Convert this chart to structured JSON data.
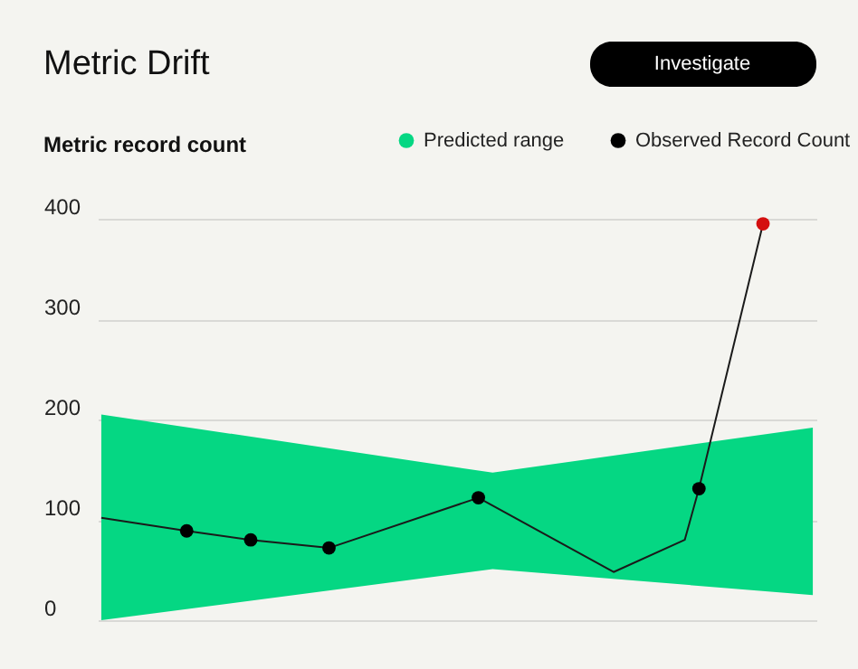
{
  "chart_data": {
    "type": "line",
    "title": "Metric Drift",
    "ylabel": "Metric record count",
    "annotations": [
      "Investigate"
    ],
    "categories": [
      null,
      null,
      null,
      null,
      null,
      null,
      null,
      null,
      null,
      null,
      null,
      null,
      null,
      null,
      null,
      null,
      null,
      null,
      null,
      null,
      null,
      null,
      null,
      null,
      null,
      null,
      null,
      null,
      null,
      null,
      null,
      null,
      null,
      null,
      null,
      null,
      null,
      null,
      null,
      null,
      null,
      null,
      null,
      null,
      null,
      null,
      null,
      null,
      null,
      null,
      null,
      null,
      null,
      null,
      null,
      null,
      null,
      null,
      null,
      null,
      null,
      null,
      null,
      null,
      null,
      null,
      null,
      null,
      null,
      null,
      null,
      null,
      null,
      null,
      null,
      null,
      null,
      null,
      null,
      null,
      null,
      null,
      null,
      null,
      null,
      null,
      null,
      null,
      null,
      null,
      null,
      null,
      null,
      null,
      null,
      null,
      null,
      null,
      null,
      null,
      null
    ],
    "ylim": [
      0,
      400
    ],
    "yticks": [
      0,
      100,
      200,
      300,
      400
    ],
    "tick_labels": "y",
    "grid": "y",
    "legend": "top right",
    "series": [
      {
        "type": "area",
        "name": "Predicted range",
        "color": "#05d783",
        "values": [
          null,
          null,
          null,
          null,
          null,
          null,
          null,
          null,
          null,
          null,
          null,
          null,
          null,
          null,
          null,
          null,
          null,
          null,
          null,
          null,
          null,
          null,
          null,
          null,
          null,
          null,
          null,
          null,
          null,
          null,
          null,
          null,
          null,
          null,
          null,
          null,
          null,
          null,
          null,
          null,
          null,
          null,
          null,
          null,
          null,
          null,
          null,
          null,
          null,
          null,
          null,
          null,
          null,
          null,
          null,
          null,
          null,
          null,
          null,
          null,
          null,
          null,
          null,
          null,
          null,
          null,
          null,
          null,
          null,
          null,
          null,
          null,
          null,
          null,
          null,
          null,
          null,
          null,
          null,
          null,
          null,
          null,
          null,
          null,
          null,
          null,
          null,
          null,
          null,
          null,
          null,
          null,
          null,
          null,
          null,
          null,
          null,
          null,
          null,
          null,
          null
        ],
        "lower": [
          0,
          null,
          null,
          null,
          null,
          null,
          null,
          null,
          null,
          null,
          null,
          null,
          null,
          null,
          null,
          null,
          null,
          null,
          null,
          null,
          null,
          null,
          null,
          null,
          null,
          null,
          null,
          null,
          null,
          null,
          null,
          null,
          null,
          null,
          null,
          null,
          null,
          null,
          null,
          null,
          null,
          null,
          null,
          null,
          null,
          null,
          null,
          null,
          null,
          null,
          null,
          null,
          null,
          null,
          null,
          51,
          null,
          null,
          null,
          null,
          null,
          null,
          null,
          null,
          null,
          null,
          null,
          null,
          null,
          null,
          null,
          null,
          null,
          null,
          null,
          null,
          null,
          null,
          null,
          null,
          null,
          null,
          null,
          null,
          null,
          null,
          null,
          null,
          null,
          null,
          null,
          null,
          null,
          null,
          null,
          null,
          null,
          null,
          null,
          null,
          25
        ],
        "upper": [
          205,
          null,
          null,
          null,
          null,
          null,
          null,
          null,
          null,
          null,
          null,
          null,
          null,
          null,
          null,
          null,
          null,
          null,
          null,
          null,
          null,
          null,
          null,
          null,
          null,
          null,
          null,
          null,
          null,
          null,
          null,
          null,
          null,
          null,
          null,
          null,
          null,
          null,
          null,
          null,
          null,
          null,
          null,
          null,
          null,
          null,
          null,
          null,
          null,
          null,
          null,
          null,
          null,
          null,
          null,
          147,
          null,
          null,
          null,
          null,
          null,
          null,
          null,
          null,
          null,
          null,
          null,
          null,
          null,
          null,
          null,
          null,
          null,
          null,
          null,
          null,
          null,
          null,
          null,
          null,
          null,
          null,
          null,
          null,
          null,
          null,
          null,
          null,
          null,
          null,
          null,
          null,
          null,
          null,
          null,
          null,
          null,
          null,
          null,
          null,
          192
        ]
      },
      {
        "color": "#1a1a1a",
        "marker": "none",
        "values": [
          102,
          null,
          null,
          null,
          null,
          null,
          null,
          null,
          null,
          null,
          null,
          null,
          89,
          null,
          null,
          null,
          null,
          null,
          null,
          null,
          null,
          80,
          null,
          null,
          null,
          null,
          null,
          null,
          null,
          null,
          null,
          null,
          72,
          null,
          null,
          null,
          null,
          null,
          null,
          null,
          null,
          null,
          null,
          null,
          null,
          null,
          null,
          null,
          null,
          null,
          null,
          null,
          null,
          122,
          null,
          null,
          null,
          null,
          null,
          null,
          null,
          null,
          null,
          null,
          null,
          null,
          null,
          null,
          null,
          null,
          null,
          null,
          48,
          null,
          null,
          null,
          null,
          null,
          null,
          null,
          null,
          null,
          80,
          null,
          131,
          null,
          null,
          null,
          null,
          null,
          null,
          null,
          null,
          395,
          null,
          null,
          null,
          null,
          null,
          null,
          null
        ]
      },
      {
        "type": "scatter",
        "name": "Observed Record Count",
        "color": "#000000",
        "marker": "circle",
        "values": [
          null,
          null,
          null,
          null,
          null,
          null,
          null,
          null,
          null,
          null,
          null,
          null,
          89,
          null,
          null,
          null,
          null,
          null,
          null,
          null,
          null,
          80,
          null,
          null,
          null,
          null,
          null,
          null,
          null,
          null,
          null,
          null,
          72,
          null,
          null,
          null,
          null,
          null,
          null,
          null,
          null,
          null,
          null,
          null,
          null,
          null,
          null,
          null,
          null,
          null,
          null,
          null,
          null,
          122,
          null,
          null,
          null,
          null,
          null,
          null,
          null,
          null,
          null,
          null,
          null,
          null,
          null,
          null,
          null,
          null,
          null,
          null,
          null,
          null,
          null,
          null,
          null,
          null,
          null,
          null,
          null,
          null,
          null,
          null,
          131,
          null,
          null,
          null,
          null,
          null,
          null,
          null,
          null,
          395,
          null,
          null,
          null,
          null,
          null,
          null,
          null
        ],
        "colors": [
          null,
          null,
          null,
          null,
          null,
          null,
          null,
          null,
          null,
          null,
          null,
          null,
          "#000000",
          null,
          null,
          null,
          null,
          null,
          null,
          null,
          null,
          "#000000",
          null,
          null,
          null,
          null,
          null,
          null,
          null,
          null,
          null,
          null,
          "#000000",
          null,
          null,
          null,
          null,
          null,
          null,
          null,
          null,
          null,
          null,
          null,
          null,
          null,
          null,
          null,
          null,
          null,
          null,
          null,
          null,
          "#000000",
          null,
          null,
          null,
          null,
          null,
          null,
          null,
          null,
          null,
          null,
          null,
          null,
          null,
          null,
          null,
          null,
          null,
          null,
          null,
          null,
          null,
          null,
          null,
          null,
          null,
          null,
          null,
          null,
          null,
          null,
          "#000000",
          null,
          null,
          null,
          null,
          null,
          null,
          null,
          null,
          "#d40f0f",
          null,
          null,
          null,
          null,
          null,
          null,
          null
        ]
      }
    ]
  }
}
